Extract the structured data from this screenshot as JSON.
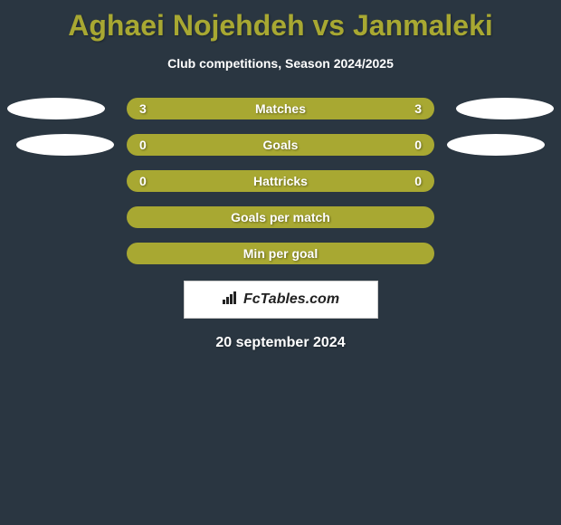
{
  "title": "Aghaei Nojehdeh vs Janmaleki",
  "subtitle": "Club competitions, Season 2024/2025",
  "rows": [
    {
      "label": "Matches",
      "left": "3",
      "right": "3",
      "show_left_ellipse": true,
      "show_right_ellipse": true
    },
    {
      "label": "Goals",
      "left": "0",
      "right": "0",
      "show_left_ellipse": true,
      "show_right_ellipse": true,
      "left_ellipse_inset": 18,
      "right_ellipse_inset": 18
    },
    {
      "label": "Hattricks",
      "left": "0",
      "right": "0",
      "show_left_ellipse": false,
      "show_right_ellipse": false
    },
    {
      "label": "Goals per match",
      "left": "",
      "right": "",
      "show_left_ellipse": false,
      "show_right_ellipse": false
    },
    {
      "label": "Min per goal",
      "left": "",
      "right": "",
      "show_left_ellipse": false,
      "show_right_ellipse": false
    }
  ],
  "logo_text": "FcTables.com",
  "date": "20 september 2024",
  "colors": {
    "background": "#2a3641",
    "bar": "#a8a832",
    "title": "#a8a832",
    "text_light": "#ffffff",
    "logo_bg": "#ffffff"
  },
  "row_bar_width": 340,
  "row_bar_height": 24,
  "ellipse_width": 108,
  "ellipse_height": 24
}
